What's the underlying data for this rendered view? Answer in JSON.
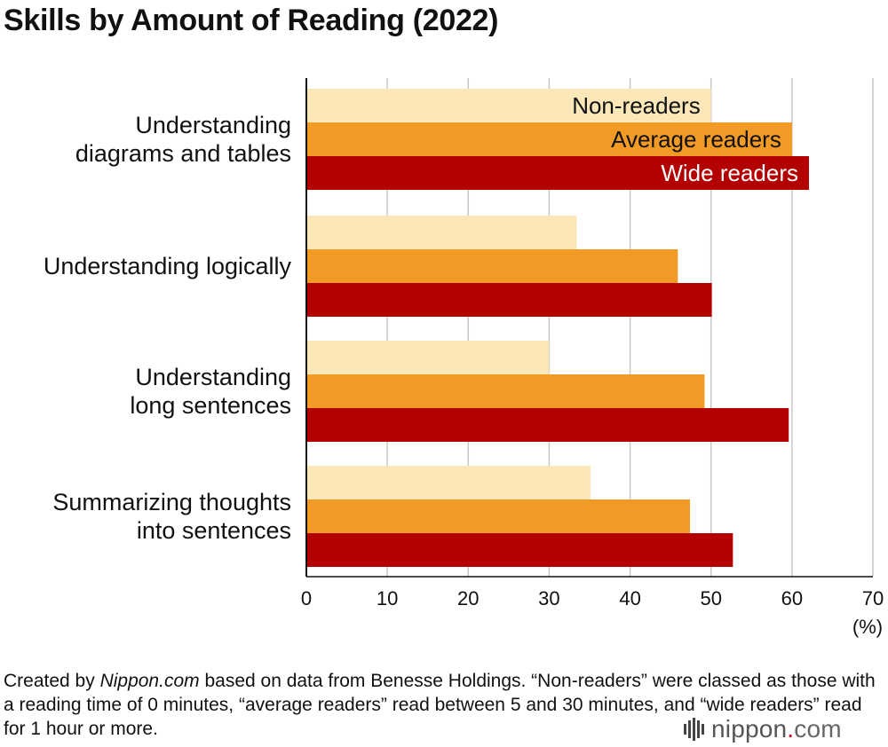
{
  "title": "Skills by Amount of Reading (2022)",
  "chart_data": {
    "type": "bar",
    "orientation": "horizontal",
    "title": "Skills by Amount of Reading (2022)",
    "categories": [
      [
        "Understanding",
        "diagrams and tables"
      ],
      [
        "Understanding logically"
      ],
      [
        "Understanding",
        "long sentences"
      ],
      [
        "Summarizing thoughts",
        "into sentences"
      ]
    ],
    "series": [
      {
        "name": "Non-readers",
        "color": "#fbe7b8",
        "label_color": "#111111",
        "values": [
          50.0,
          33.4,
          30.0,
          35.1
        ]
      },
      {
        "name": "Average readers",
        "color": "#f29a26",
        "label_color": "#111111",
        "values": [
          60.0,
          45.9,
          49.2,
          47.4
        ]
      },
      {
        "name": "Wide readers",
        "color": "#b30000",
        "label_color": "#ffffff",
        "values": [
          62.1,
          50.1,
          59.6,
          52.7
        ]
      }
    ],
    "xlim": [
      0,
      70
    ],
    "xticks": [
      "0",
      "10",
      "20",
      "30",
      "40",
      "50",
      "60",
      "70"
    ],
    "unit_label": "(%)",
    "legend": "inside bars of first category",
    "grid": true
  },
  "note": {
    "pre": "Created by ",
    "source": "Nippon.com",
    "post": " based on data from Benesse Holdings. “Non-readers” were classed as those with a reading time of 0 minutes, “average readers” read between 5 and 30 minutes, and “wide readers” read for 1 hour or more."
  },
  "logo": {
    "word": "nippon",
    "dot": ".",
    "tld": "com"
  }
}
